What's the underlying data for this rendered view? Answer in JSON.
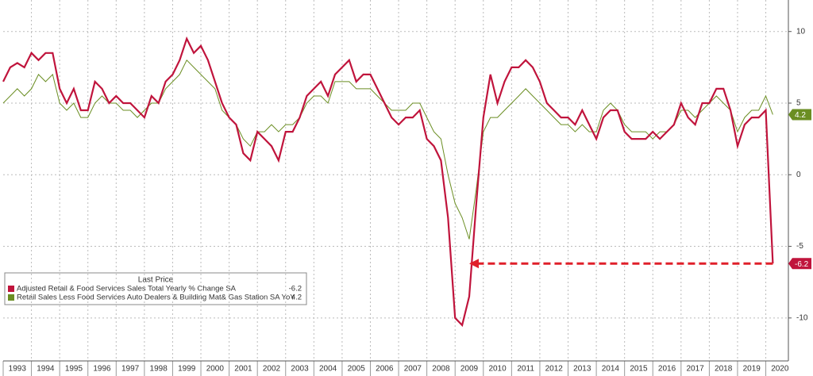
{
  "chart_data": {
    "type": "line",
    "legend_title": "Last Price",
    "x": [
      1993,
      1993.25,
      1993.5,
      1993.75,
      1994,
      1994.25,
      1994.5,
      1994.75,
      1995,
      1995.25,
      1995.5,
      1995.75,
      1996,
      1996.25,
      1996.5,
      1996.75,
      1997,
      1997.25,
      1997.5,
      1997.75,
      1998,
      1998.25,
      1998.5,
      1998.75,
      1999,
      1999.25,
      1999.5,
      1999.75,
      2000,
      2000.25,
      2000.5,
      2000.75,
      2001,
      2001.25,
      2001.5,
      2001.75,
      2002,
      2002.25,
      2002.5,
      2002.75,
      2003,
      2003.25,
      2003.5,
      2003.75,
      2004,
      2004.25,
      2004.5,
      2004.75,
      2005,
      2005.25,
      2005.5,
      2005.75,
      2006,
      2006.25,
      2006.5,
      2006.75,
      2007,
      2007.25,
      2007.5,
      2007.75,
      2008,
      2008.25,
      2008.5,
      2008.75,
      2009,
      2009.25,
      2009.5,
      2009.75,
      2010,
      2010.25,
      2010.5,
      2010.75,
      2011,
      2011.25,
      2011.5,
      2011.75,
      2012,
      2012.25,
      2012.5,
      2012.75,
      2013,
      2013.25,
      2013.5,
      2013.75,
      2014,
      2014.25,
      2014.5,
      2014.75,
      2015,
      2015.25,
      2015.5,
      2015.75,
      2016,
      2016.25,
      2016.5,
      2016.75,
      2017,
      2017.25,
      2017.5,
      2017.75,
      2018,
      2018.25,
      2018.5,
      2018.75,
      2019,
      2019.25,
      2019.5,
      2019.75,
      2020,
      2020.25
    ],
    "series": [
      {
        "name": "Adjusted Retail & Food Services Sales Total Yearly % Change SA",
        "color": "#c0143c",
        "values": [
          6.5,
          7.5,
          7.8,
          7.5,
          8.5,
          8,
          8.5,
          8.5,
          6,
          5,
          6,
          4.5,
          4.5,
          6.5,
          6,
          5,
          5.5,
          5,
          5,
          4.5,
          4,
          5.5,
          5,
          6.5,
          7,
          8,
          9.5,
          8.5,
          9,
          8,
          6.5,
          5,
          4,
          3.5,
          1.5,
          1,
          3,
          2.5,
          2,
          1,
          3,
          3,
          4,
          5.5,
          6,
          6.5,
          5.5,
          7,
          7.5,
          8,
          6.5,
          7,
          7,
          6,
          5,
          4,
          3.5,
          4,
          4,
          4.5,
          2.5,
          2,
          1,
          -3,
          -10,
          -10.5,
          -8.5,
          -2,
          4,
          7,
          5,
          6.5,
          7.5,
          7.5,
          8,
          7.5,
          6.5,
          5,
          4.5,
          4,
          4,
          3.5,
          4.5,
          3.5,
          2.5,
          4,
          4.5,
          4.5,
          3,
          2.5,
          2.5,
          2.5,
          3,
          2.5,
          3,
          3.5,
          5,
          4,
          3.5,
          5,
          5,
          6,
          6,
          4.5,
          2,
          3.5,
          4,
          4,
          4.5,
          -6.2
        ]
      },
      {
        "name": "Retail Sales Less Food Services Auto Dealers & Building Mat& Gas Station SA YoY",
        "color": "#6b8e23",
        "values": [
          5,
          5.5,
          6,
          5.5,
          6,
          7,
          6.5,
          7,
          5,
          4.5,
          5,
          4,
          4,
          5,
          5.5,
          5,
          5,
          4.5,
          4.5,
          4,
          4.5,
          5,
          5,
          6,
          6.5,
          7,
          8,
          7.5,
          7,
          6.5,
          6,
          4.5,
          4,
          3.5,
          2.5,
          2,
          3,
          3,
          3.5,
          3,
          3.5,
          3.5,
          4,
          5,
          5.5,
          5.5,
          5,
          6.5,
          6.5,
          6.5,
          6,
          6,
          6,
          5.5,
          5,
          4.5,
          4.5,
          4.5,
          5,
          5,
          4,
          3,
          2.5,
          0,
          -2,
          -3,
          -4.5,
          -1,
          3,
          4,
          4,
          4.5,
          5,
          5.5,
          6,
          5.5,
          5,
          4.5,
          4,
          3.5,
          3.5,
          3,
          3.5,
          3,
          3,
          4.5,
          5,
          4.5,
          3.5,
          3,
          3,
          3,
          2.5,
          3,
          3,
          3.5,
          4.5,
          4.5,
          4,
          4.5,
          5,
          5.5,
          5,
          4.5,
          3,
          4,
          4.5,
          4.5,
          5.5,
          4.2
        ]
      }
    ],
    "xlim": [
      1993,
      2020.8
    ],
    "xticks": [
      1993,
      1994,
      1995,
      1996,
      1997,
      1998,
      1999,
      2000,
      2001,
      2002,
      2003,
      2004,
      2005,
      2006,
      2007,
      2008,
      2009,
      2010,
      2011,
      2012,
      2013,
      2014,
      2015,
      2016,
      2017,
      2018,
      2019,
      2020
    ],
    "ylim": [
      -13,
      12.2
    ],
    "yticks": [
      -10,
      -5,
      0,
      5,
      10
    ],
    "grid": true
  }
}
